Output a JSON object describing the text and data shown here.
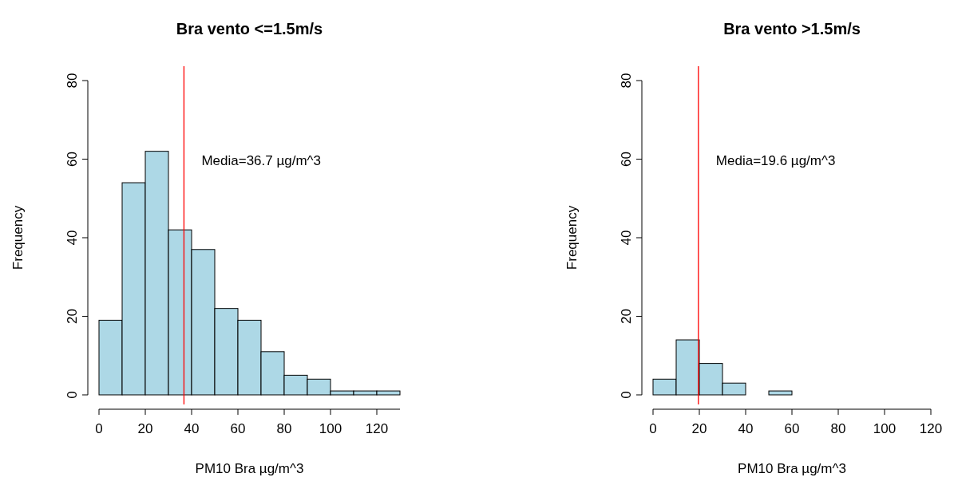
{
  "chart_data": [
    {
      "type": "histogram",
      "title": "Bra vento <=1.5m/s",
      "xlabel": "PM10 Bra µg/m^3",
      "ylabel": "Frequency",
      "color": "#add8e6",
      "bins": [
        0,
        10,
        20,
        30,
        40,
        50,
        60,
        70,
        80,
        90,
        100,
        110,
        120,
        130
      ],
      "values": [
        19,
        54,
        62,
        42,
        37,
        22,
        19,
        11,
        5,
        4,
        1,
        1,
        1
      ],
      "xlim": [
        0,
        130
      ],
      "xticks": [
        0,
        20,
        40,
        60,
        80,
        100,
        120
      ],
      "ylim": [
        0,
        80
      ],
      "yticks": [
        0,
        20,
        40,
        60,
        80
      ],
      "ref_lines": [
        {
          "axis": "x",
          "value": 36.7,
          "color": "#ff0000"
        }
      ],
      "annotations": [
        "Media=36.7 µg/m^3"
      ]
    },
    {
      "type": "histogram",
      "title": "Bra vento >1.5m/s",
      "xlabel": "PM10 Bra µg/m^3",
      "ylabel": "Frequency",
      "color": "#add8e6",
      "bins": [
        0,
        10,
        20,
        30,
        40,
        50,
        60,
        70,
        80,
        90,
        100,
        110,
        120
      ],
      "values": [
        4,
        14,
        8,
        3,
        0,
        1,
        0,
        0,
        0,
        0,
        0,
        0
      ],
      "xlim": [
        0,
        120
      ],
      "xticks": [
        0,
        20,
        40,
        60,
        80,
        100,
        120
      ],
      "ylim": [
        0,
        80
      ],
      "yticks": [
        0,
        20,
        40,
        60,
        80
      ],
      "ref_lines": [
        {
          "axis": "x",
          "value": 19.6,
          "color": "#ff0000"
        }
      ],
      "annotations": [
        "Media=19.6 µg/m^3"
      ]
    }
  ]
}
